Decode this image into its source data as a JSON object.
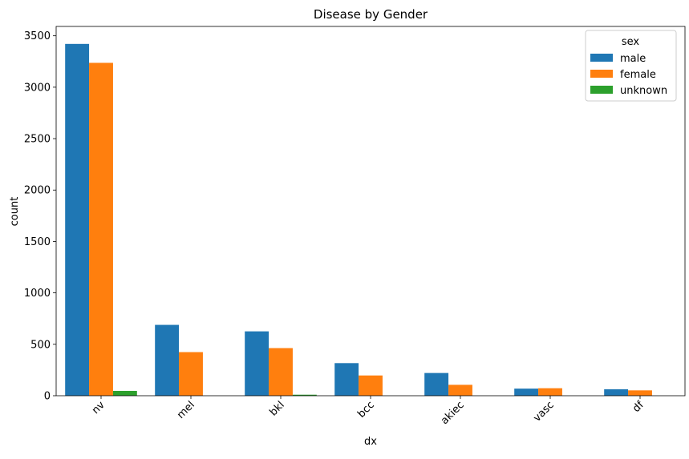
{
  "chart_data": {
    "type": "bar",
    "title": "Disease by Gender",
    "xlabel": "dx",
    "ylabel": "count",
    "categories": [
      "nv",
      "mel",
      "bkl",
      "bcc",
      "akiec",
      "vasc",
      "df"
    ],
    "series": [
      {
        "name": "male",
        "color": "#1f77b4",
        "values": [
          3421,
          689,
          626,
          317,
          221,
          69,
          63
        ]
      },
      {
        "name": "female",
        "color": "#ff7f0e",
        "values": [
          3237,
          424,
          463,
          197,
          106,
          73,
          52
        ]
      },
      {
        "name": "unknown",
        "color": "#2ca02c",
        "values": [
          47,
          0,
          10,
          0,
          0,
          0,
          0
        ]
      }
    ],
    "ylim": [
      0,
      3591
    ],
    "yticks": [
      0,
      500,
      1000,
      1500,
      2000,
      2500,
      3000,
      3500
    ],
    "legend": {
      "title": "sex",
      "placement": "top-right"
    },
    "grid": false
  }
}
